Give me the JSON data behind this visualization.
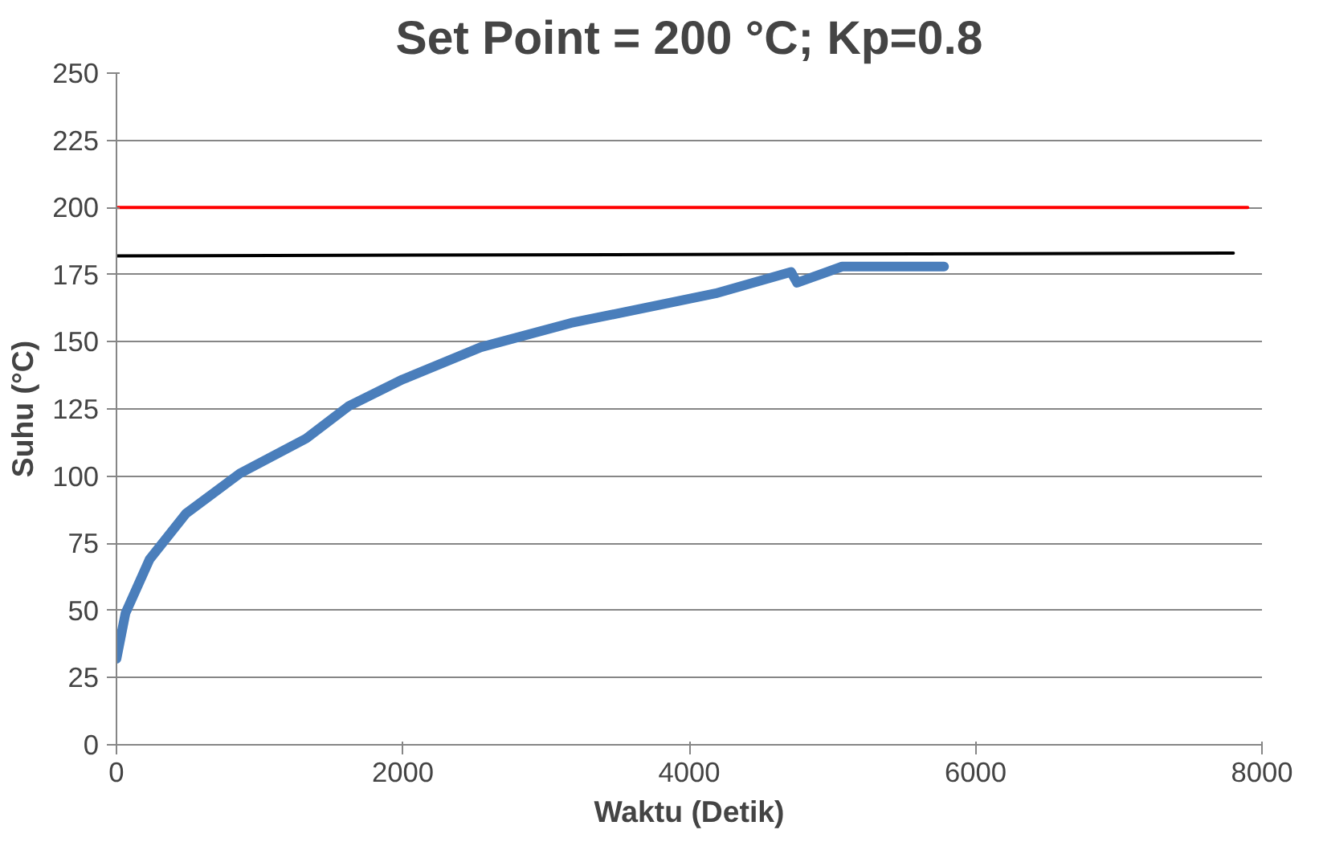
{
  "chart_data": {
    "type": "line",
    "title": "Set Point = 200 °C; Kp=0.8",
    "xlabel": "Waktu (Detik)",
    "ylabel": "Suhu (°C)",
    "xlim": [
      0,
      8000
    ],
    "xticks": [
      0,
      2000,
      4000,
      6000,
      8000
    ],
    "ylim": [
      0,
      250
    ],
    "yticks": [
      0,
      25,
      50,
      75,
      100,
      125,
      150,
      175,
      200,
      225,
      250
    ],
    "grid": "y",
    "series": [
      {
        "color": "#4a7ebb",
        "x": [
          0,
          63,
          231,
          484,
          862,
          1325,
          1620,
          1999,
          2545,
          3175,
          4184,
          4711,
          4753,
          5068,
          5780
        ],
        "values": [
          32,
          49,
          69,
          86,
          101,
          114,
          126,
          136,
          148,
          157,
          168,
          176,
          172,
          178,
          178
        ]
      },
      {
        "color": "#ff0000",
        "x": [
          0,
          7900
        ],
        "values": [
          200,
          200
        ]
      },
      {
        "color": "#000000",
        "x": [
          0,
          7800
        ],
        "values": [
          182,
          183
        ]
      }
    ]
  }
}
